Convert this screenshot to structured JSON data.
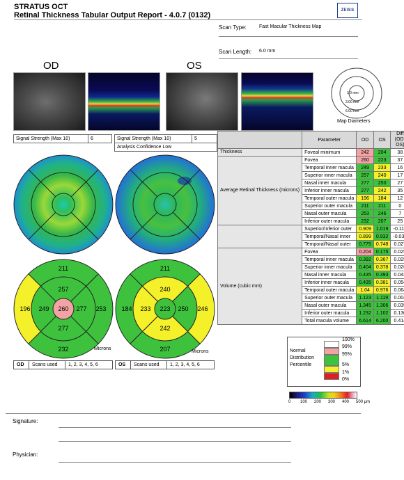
{
  "header": {
    "line1": "STRATUS OCT",
    "line2": "Retinal Thickness Tabular Output Report - 4.0.7 (0132)",
    "logo": "ZEISS",
    "scan_type_label": "Scan Type:",
    "scan_type_value": "Fast Macular Thickness Map",
    "scan_length_label": "Scan Length:",
    "scan_length_value": "6.0 mm"
  },
  "eyes": {
    "od": "OD",
    "os": "OS"
  },
  "diameters": {
    "d1": "1.0 mm",
    "d2": "3.00 mm",
    "d3": "6.00 mm",
    "label": "Map Diameters"
  },
  "signal": {
    "od_label": "Signal Strength (Max 10)",
    "od_value": "6",
    "os_label": "Signal Strength (Max 10)",
    "os_value": "5",
    "os_confidence": "Analysis Confidence Low"
  },
  "table": {
    "headers": [
      "Parameter",
      "OD",
      "OS",
      "Diff (OD-OS)"
    ],
    "groups": {
      "thickness": "Thickness",
      "average": "Average Retinal Thickness (microns)",
      "volume": "Volume (cubic mm)"
    },
    "rows": [
      {
        "p": "Foveal minimum",
        "od": "242",
        "os": "204",
        "diff": "38",
        "odc": "r",
        "osc": "g"
      },
      {
        "p": "Fovea",
        "od": "260",
        "os": "223",
        "diff": "37",
        "odc": "r",
        "osc": "g"
      },
      {
        "p": "Temporal inner macula",
        "od": "249",
        "os": "233",
        "diff": "16",
        "odc": "g",
        "osc": "y"
      },
      {
        "p": "Superior inner macula",
        "od": "257",
        "os": "240",
        "diff": "17",
        "odc": "g",
        "osc": "y"
      },
      {
        "p": "Nasal inner macula",
        "od": "277",
        "os": "250",
        "diff": "27",
        "odc": "g",
        "osc": "g"
      },
      {
        "p": "Inferior inner macula",
        "od": "277",
        "os": "242",
        "diff": "35",
        "odc": "g",
        "osc": "y"
      },
      {
        "p": "Temporal outer macula",
        "od": "196",
        "os": "184",
        "diff": "12",
        "odc": "y",
        "osc": "y"
      },
      {
        "p": "Superior outer macula",
        "od": "211",
        "os": "211",
        "diff": "0",
        "odc": "g",
        "osc": "g"
      },
      {
        "p": "Nasal outer macula",
        "od": "253",
        "os": "246",
        "diff": "7",
        "odc": "g",
        "osc": "g"
      },
      {
        "p": "Inferior outer macula",
        "od": "232",
        "os": "207",
        "diff": "25",
        "odc": "g",
        "osc": "g"
      },
      {
        "p": "Superior/Inferior outer",
        "od": "0.909",
        "os": "1.019",
        "diff": "-0.110",
        "odc": "y",
        "osc": "g"
      },
      {
        "p": "Temporal/Nasal inner",
        "od": "0.899",
        "os": "0.932",
        "diff": "-0.033",
        "odc": "y",
        "osc": "g"
      },
      {
        "p": "Temporal/Nasal outer",
        "od": "0.775",
        "os": "0.748",
        "diff": "0.027",
        "odc": "g",
        "osc": "y"
      },
      {
        "p": "Fovea",
        "od": "0.204",
        "os": "0.175",
        "diff": "0.029",
        "odc": "r",
        "osc": "g"
      },
      {
        "p": "Temporal inner macula",
        "od": "0.392",
        "os": "0.367",
        "diff": "0.025",
        "odc": "g",
        "osc": "y"
      },
      {
        "p": "Superior inner macula",
        "od": "0.404",
        "os": "0.378",
        "diff": "0.026",
        "odc": "g",
        "osc": "y"
      },
      {
        "p": "Nasal inner macula",
        "od": "0.435",
        "os": "0.393",
        "diff": "0.042",
        "odc": "g",
        "osc": "g"
      },
      {
        "p": "Inferior inner macula",
        "od": "0.435",
        "os": "0.381",
        "diff": "0.054",
        "odc": "g",
        "osc": "y"
      },
      {
        "p": "Temporal outer macula",
        "od": "1.04",
        "os": "0.976",
        "diff": "0.064",
        "odc": "y",
        "osc": "y"
      },
      {
        "p": "Superior outer macula",
        "od": "1.123",
        "os": "1.119",
        "diff": "0.004",
        "odc": "g",
        "osc": "g"
      },
      {
        "p": "Nasal outer macula",
        "od": "1.345",
        "os": "1.306",
        "diff": "0.039",
        "odc": "g",
        "osc": "g"
      },
      {
        "p": "Inferior outer macula",
        "od": "1.232",
        "os": "1.102",
        "diff": "0.130",
        "odc": "g",
        "osc": "g"
      },
      {
        "p": "Total macula volume",
        "od": "6.614",
        "os": "6.200",
        "diff": "0.414",
        "odc": "g",
        "osc": "g"
      }
    ]
  },
  "od_map": {
    "superior_outer": "211",
    "superior_inner": "257",
    "temporal_outer": "196",
    "temporal_inner": "249",
    "center": "260",
    "nasal_inner": "277",
    "nasal_outer": "253",
    "inferior_inner": "277",
    "inferior_outer": "232",
    "unit": "Microns"
  },
  "os_map": {
    "superior_outer": "211",
    "superior_inner": "240",
    "temporal_outer": "184",
    "temporal_inner": "233",
    "center": "223",
    "nasal_inner": "250",
    "nasal_outer": "246",
    "inferior_inner": "242",
    "inferior_outer": "207",
    "unit": "Microns"
  },
  "scans": {
    "od_label": "OD",
    "od_used_label": "Scans used",
    "od_used": "1, 2, 3, 4, 5, 6",
    "os_label": "OS",
    "os_used_label": "Scans used",
    "os_used": "1, 2, 3, 4, 5, 6"
  },
  "legend": {
    "title1": "Normal",
    "title2": "Distribution",
    "title3": "Percentile",
    "p100": "100%",
    "p99": "99%",
    "p95": "95%",
    "p5": "5%",
    "p1": "1%",
    "p0": "0%",
    "colors": {
      "white": "#ffffff",
      "red_light": "#f3a3a3",
      "green": "#3ec23e",
      "yellow": "#f4f02a",
      "red": "#e02020"
    }
  },
  "colorbar": {
    "ticks": [
      "0",
      "100",
      "200",
      "300",
      "400",
      "500 µm"
    ]
  },
  "footer": {
    "signature": "Signature:",
    "physician": "Physician:"
  }
}
